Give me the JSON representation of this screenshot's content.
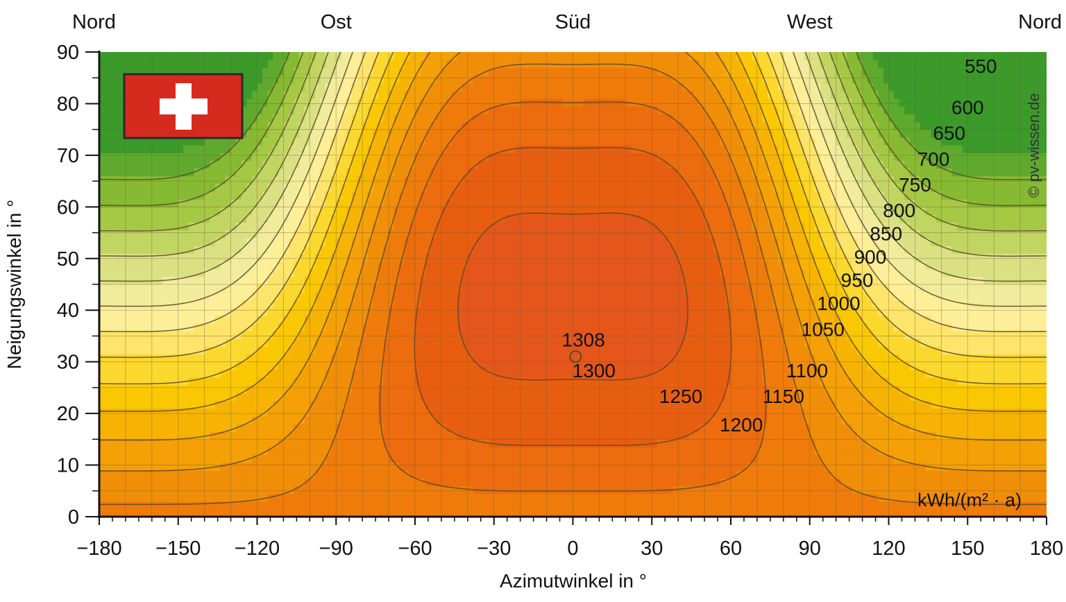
{
  "chart_data": {
    "type": "heatmap",
    "subtype": "contour",
    "title": "",
    "xlabel": "Azimutwinkel in °",
    "ylabel": "Neigungswinkel in °",
    "xlim": [
      -180,
      180
    ],
    "ylim": [
      0,
      90
    ],
    "x_ticks": [
      -180,
      -150,
      -120,
      -90,
      -60,
      -30,
      0,
      30,
      60,
      90,
      120,
      150,
      180
    ],
    "y_ticks": [
      0,
      10,
      20,
      30,
      40,
      50,
      60,
      70,
      80,
      90
    ],
    "x_tick_labels": [
      "−180",
      "−150",
      "−120",
      "−90",
      "−60",
      "−30",
      "0",
      "30",
      "60",
      "90",
      "120",
      "150",
      "180"
    ],
    "y_tick_labels": [
      "0",
      "10",
      "20",
      "30",
      "40",
      "50",
      "60",
      "70",
      "80",
      "90"
    ],
    "directions": [
      {
        "label": "Nord",
        "azimuth": -180
      },
      {
        "label": "Ost",
        "azimuth": -90
      },
      {
        "label": "Süd",
        "azimuth": 0
      },
      {
        "label": "West",
        "azimuth": 90
      },
      {
        "label": "Nord",
        "azimuth": 180
      }
    ],
    "unit": "kWh/(m² · a)",
    "levels": [
      1300,
      1250,
      1200,
      1150,
      1100,
      1050,
      1000,
      950,
      900,
      850,
      800,
      750,
      700,
      650,
      600,
      550
    ],
    "level_colors": [
      "#e4561a",
      "#e85e10",
      "#ec6c0e",
      "#ef7c0a",
      "#f18e08",
      "#f4a006",
      "#f7b304",
      "#fac802",
      "#fbd82e",
      "#fde46a",
      "#fdee98",
      "#f1ec9c",
      "#dbe183",
      "#c1d562",
      "#a5c845",
      "#86ba32",
      "#5faa2e",
      "#3c9a2b"
    ],
    "maximum": {
      "value": "1308",
      "azimuth": 1,
      "tilt": 31
    },
    "contour_labels": [
      {
        "text": "1308",
        "azimuth": 4,
        "tilt": 33
      },
      {
        "text": "1300",
        "azimuth": 8,
        "tilt": 27
      },
      {
        "text": "1250",
        "azimuth": 41,
        "tilt": 22
      },
      {
        "text": "1200",
        "azimuth": 64,
        "tilt": 16.5
      },
      {
        "text": "1150",
        "azimuth": 80,
        "tilt": 22
      },
      {
        "text": "1100",
        "azimuth": 89,
        "tilt": 27
      },
      {
        "text": "1050",
        "azimuth": 95,
        "tilt": 35
      },
      {
        "text": "1000",
        "azimuth": 101,
        "tilt": 40
      },
      {
        "text": "950",
        "azimuth": 108,
        "tilt": 44.5
      },
      {
        "text": "900",
        "azimuth": 113,
        "tilt": 49
      },
      {
        "text": "850",
        "azimuth": 119,
        "tilt": 53.5
      },
      {
        "text": "800",
        "azimuth": 124,
        "tilt": 58
      },
      {
        "text": "750",
        "azimuth": 130,
        "tilt": 63
      },
      {
        "text": "700",
        "azimuth": 137,
        "tilt": 68
      },
      {
        "text": "650",
        "azimuth": 143,
        "tilt": 73
      },
      {
        "text": "600",
        "azimuth": 150,
        "tilt": 78
      },
      {
        "text": "550",
        "azimuth": 155,
        "tilt": 86
      }
    ]
  },
  "flag": {
    "name": "Schweiz"
  },
  "watermark": "© pv-wissen.de"
}
